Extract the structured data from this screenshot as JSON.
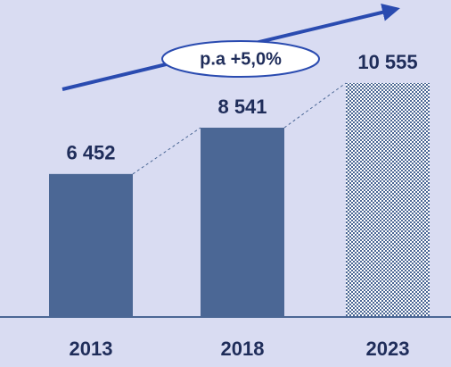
{
  "chart_data": {
    "type": "bar",
    "categories": [
      "2013",
      "2018",
      "2023"
    ],
    "values": [
      6452,
      8541,
      10555
    ],
    "value_labels": [
      "6 452",
      "8 541",
      "10 555"
    ],
    "color": "#4b6795",
    "pattern": [
      false,
      false,
      true
    ],
    "annotation": "p.a +5,0%"
  }
}
